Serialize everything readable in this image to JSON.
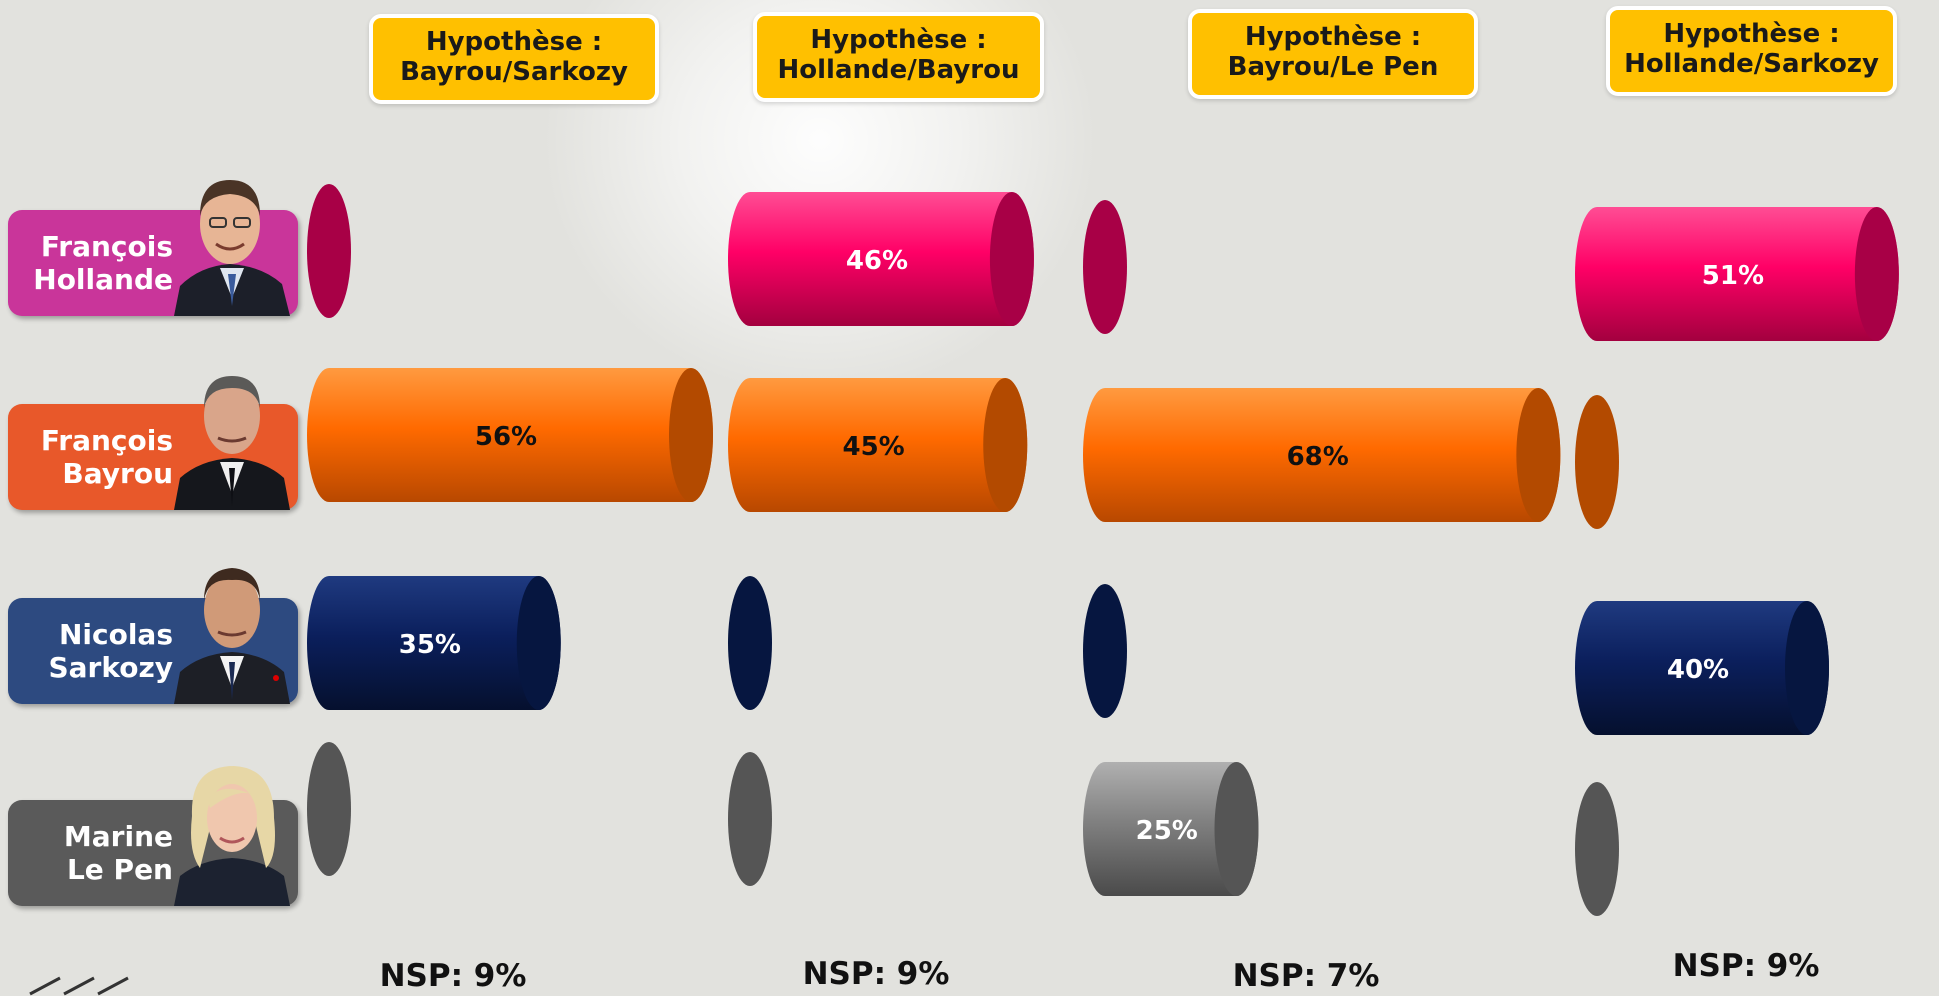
{
  "colors": {
    "background": "#e2e2de",
    "hypothesis_box": "#ffc000",
    "hollande": "#ff0066",
    "bayrou": "#ff6600",
    "sarkozy": "#0b1f5c",
    "lepen": "#7f7f7f"
  },
  "candidates": [
    {
      "key": "hollande",
      "first": "François",
      "last": "Hollande",
      "label_bg": "#c9359a",
      "photo": "photo-hollande"
    },
    {
      "key": "bayrou",
      "first": "François",
      "last": "Bayrou",
      "label_bg": "#e8582a",
      "photo": "photo-bayrou"
    },
    {
      "key": "sarkozy",
      "first": "Nicolas",
      "last": "Sarkozy",
      "label_bg": "#2d4a80",
      "photo": "photo-sarkozy"
    },
    {
      "key": "lepen",
      "first": "Marine",
      "last": "Le Pen",
      "label_bg": "#5a5a5a",
      "photo": "photo-lepen"
    }
  ],
  "hypotheses": [
    {
      "line1": "Hypothèse :",
      "line2": "Bayrou/Sarkozy",
      "nsp": "NSP: 9%"
    },
    {
      "line1": "Hypothèse :",
      "line2": "Hollande/Bayrou",
      "nsp": "NSP: 9%"
    },
    {
      "line1": "Hypothèse :",
      "line2": "Bayrou/Le Pen",
      "nsp": "NSP: 7%"
    },
    {
      "line1": "Hypothèse :",
      "line2": "Hollande/Sarkozy",
      "nsp": "NSP: 9%"
    }
  ],
  "chart_data": {
    "type": "bar",
    "orientation": "horizontal",
    "style": "3d-cylinder",
    "categories": [
      "Hypothèse : Bayrou/Sarkozy",
      "Hypothèse : Hollande/Bayrou",
      "Hypothèse : Bayrou/Le Pen",
      "Hypothèse : Hollande/Sarkozy"
    ],
    "series": [
      {
        "name": "François Hollande",
        "values": [
          0,
          46,
          0,
          51
        ]
      },
      {
        "name": "François Bayrou",
        "values": [
          56,
          45,
          68,
          0
        ]
      },
      {
        "name": "Nicolas Sarkozy",
        "values": [
          35,
          0,
          0,
          40
        ]
      },
      {
        "name": "Marine Le Pen",
        "values": [
          0,
          0,
          25,
          0
        ]
      }
    ],
    "data_labels": [
      [
        "",
        "46%",
        "",
        "51%"
      ],
      [
        "56%",
        "45%",
        "68%",
        ""
      ],
      [
        "35%",
        "",
        "",
        "40%"
      ],
      [
        "",
        "",
        "25%",
        ""
      ]
    ],
    "nsp": [
      "NSP: 9%",
      "NSP: 9%",
      "NSP: 7%",
      "NSP: 9%"
    ],
    "title": "",
    "xlabel": "",
    "ylabel": "",
    "grid": false,
    "legend": "none"
  }
}
